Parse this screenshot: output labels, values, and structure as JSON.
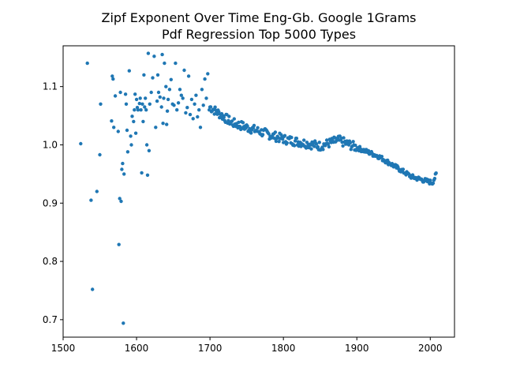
{
  "chart_data": {
    "type": "scatter",
    "title": "Zipf Exponent Over Time Eng-Gb. Google 1Grams",
    "subtitle": "Pdf Regression Top 5000 Types",
    "xlabel": "",
    "ylabel": "",
    "xlim": [
      1500,
      2033
    ],
    "ylim": [
      0.67,
      1.17
    ],
    "x_ticks": [
      "1500",
      "1600",
      "1700",
      "1800",
      "1900",
      "2000"
    ],
    "y_ticks": [
      "0.7",
      "0.8",
      "0.9",
      "1.0",
      "1.1"
    ],
    "grid": false,
    "marker_color": "#1f77b4",
    "series": [
      {
        "x": [
          1524,
          1533,
          1538,
          1540,
          1546,
          1550,
          1551,
          1566,
          1567,
          1568,
          1569,
          1571,
          1575,
          1576,
          1577,
          1578,
          1579,
          1580,
          1581,
          1582,
          1583,
          1585,
          1586,
          1587,
          1588,
          1590,
          1592,
          1593,
          1594,
          1596,
          1597,
          1598,
          1599,
          1600,
          1601,
          1602,
          1604,
          1605,
          1606,
          1607,
          1608,
          1609,
          1610,
          1611,
          1612,
          1613,
          1614,
          1615,
          1616,
          1617,
          1618,
          1620,
          1622,
          1624,
          1626,
          1628,
          1629,
          1630,
          1632,
          1634,
          1635,
          1636,
          1637,
          1638,
          1640,
          1641,
          1642,
          1643,
          1645,
          1647,
          1649,
          1651,
          1653,
          1655,
          1657,
          1659,
          1661,
          1663,
          1665,
          1667,
          1669,
          1671,
          1673,
          1675,
          1677,
          1679,
          1681,
          1683,
          1685,
          1687,
          1689,
          1691,
          1693,
          1695,
          1697,
          1699
        ],
        "y": [
          1.002,
          1.14,
          0.905,
          0.752,
          0.92,
          0.983,
          1.07,
          1.041,
          1.118,
          1.113,
          1.03,
          1.084,
          1.023,
          0.829,
          0.908,
          1.09,
          0.903,
          0.958,
          0.968,
          0.694,
          0.95,
          1.087,
          1.07,
          1.025,
          0.988,
          1.127,
          1.015,
          1.0,
          1.049,
          1.04,
          1.06,
          1.087,
          1.02,
          1.078,
          1.064,
          1.06,
          1.071,
          1.08,
          1.06,
          0.952,
          1.07,
          1.04,
          1.12,
          1.065,
          1.08,
          1.06,
          1.0,
          0.948,
          1.157,
          0.99,
          1.07,
          1.09,
          1.115,
          1.152,
          1.03,
          1.075,
          1.12,
          1.09,
          1.082,
          1.065,
          1.155,
          1.037,
          1.08,
          1.14,
          1.1,
          1.035,
          1.058,
          1.078,
          1.095,
          1.112,
          1.07,
          1.068,
          1.14,
          1.06,
          1.072,
          1.095,
          1.085,
          1.08,
          1.128,
          1.055,
          1.064,
          1.118,
          1.052,
          1.078,
          1.045,
          1.07,
          1.085,
          1.048,
          1.06,
          1.03,
          1.095,
          1.068,
          1.113,
          1.08,
          1.122,
          1.06
        ]
      }
    ]
  }
}
